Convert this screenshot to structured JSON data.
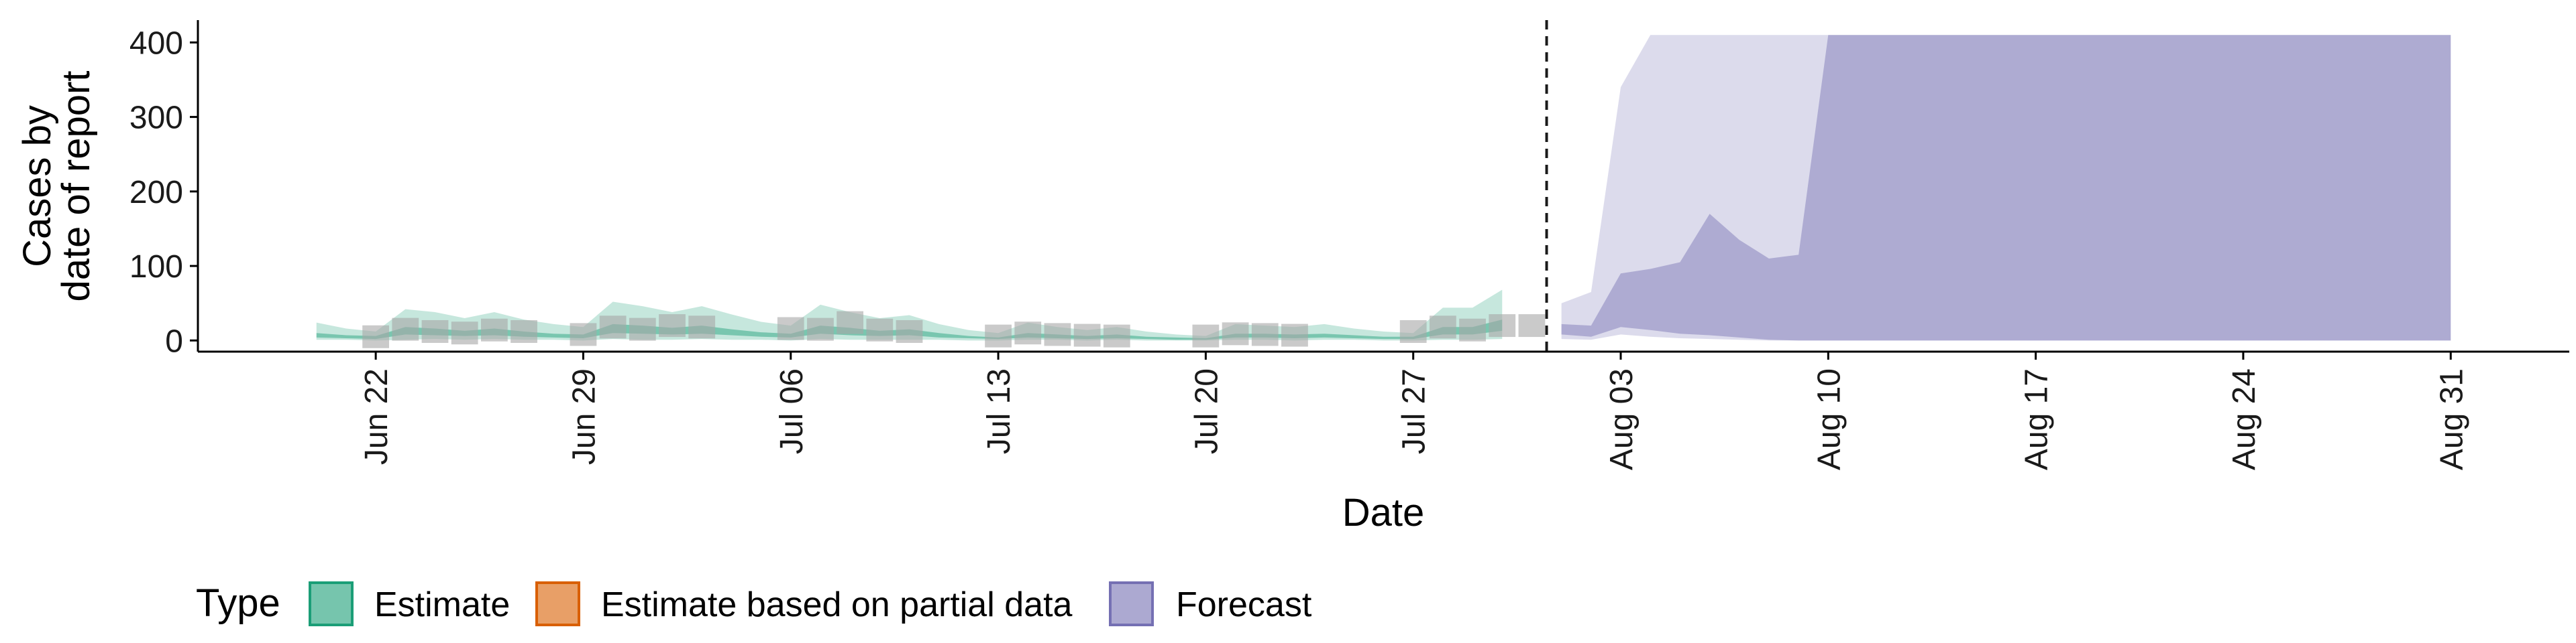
{
  "chart_data": {
    "type": "area",
    "title": "",
    "xlabel": "Date",
    "ylabel_lines": [
      "Cases by",
      "date of report"
    ],
    "x_ticks": [
      "2020-06-22",
      "2020-06-29",
      "2020-07-06",
      "2020-07-13",
      "2020-07-20",
      "2020-07-27",
      "2020-08-03",
      "2020-08-10",
      "2020-08-17",
      "2020-08-24",
      "2020-08-31"
    ],
    "x_tick_labels": [
      "Jun 22",
      "Jun 29",
      "Jul 06",
      "Jul 13",
      "Jul 20",
      "Jul 27",
      "Aug 03",
      "Aug 10",
      "Aug 17",
      "Aug 24",
      "Aug 31"
    ],
    "xlim": [
      "2020-06-16",
      "2020-09-04"
    ],
    "ylim": [
      -15,
      430
    ],
    "y_ticks": [
      0,
      100,
      200,
      300,
      400
    ],
    "forecast_start_date": "2020-07-31",
    "grid": false,
    "legend": {
      "title": "Type",
      "position": "bottom",
      "entries": [
        {
          "label": "Estimate",
          "fill": "#1b9e77",
          "stroke": "#1b9e77"
        },
        {
          "label": "Estimate based on partial data",
          "fill": "#d95f02",
          "stroke": "#d95f02"
        },
        {
          "label": "Forecast",
          "fill": "#7570b3",
          "stroke": "#7570b3"
        }
      ]
    },
    "series": [
      {
        "name": "Estimate",
        "color": "#1b9e77",
        "dates": [
          "2020-06-20",
          "2020-06-21",
          "2020-06-22",
          "2020-06-23",
          "2020-06-24",
          "2020-06-25",
          "2020-06-26",
          "2020-06-27",
          "2020-06-28",
          "2020-06-29",
          "2020-06-30",
          "2020-07-01",
          "2020-07-02",
          "2020-07-03",
          "2020-07-04",
          "2020-07-05",
          "2020-07-06",
          "2020-07-07",
          "2020-07-08",
          "2020-07-09",
          "2020-07-10",
          "2020-07-11",
          "2020-07-12",
          "2020-07-13",
          "2020-07-14",
          "2020-07-15",
          "2020-07-16",
          "2020-07-17",
          "2020-07-18",
          "2020-07-19",
          "2020-07-20",
          "2020-07-21",
          "2020-07-22",
          "2020-07-23",
          "2020-07-24",
          "2020-07-25",
          "2020-07-26",
          "2020-07-27",
          "2020-07-28",
          "2020-07-29",
          "2020-07-30"
        ],
        "outer_upper": [
          24,
          16,
          12,
          42,
          38,
          30,
          38,
          28,
          22,
          18,
          52,
          46,
          38,
          46,
          35,
          25,
          20,
          48,
          38,
          30,
          34,
          22,
          14,
          10,
          24,
          18,
          14,
          18,
          12,
          8,
          6,
          22,
          20,
          18,
          22,
          16,
          12,
          10,
          44,
          44,
          68
        ],
        "outer_lower": [
          1,
          1,
          0,
          1,
          2,
          1,
          2,
          1,
          1,
          0,
          2,
          1,
          1,
          2,
          1,
          1,
          0,
          2,
          1,
          1,
          1,
          1,
          0,
          0,
          1,
          1,
          0,
          1,
          0,
          0,
          0,
          1,
          1,
          0,
          1,
          1,
          0,
          0,
          1,
          1,
          2
        ],
        "inner_upper": [
          10,
          7,
          6,
          18,
          16,
          13,
          16,
          12,
          9,
          8,
          22,
          20,
          17,
          20,
          15,
          11,
          9,
          20,
          17,
          13,
          15,
          10,
          6,
          4,
          10,
          8,
          6,
          8,
          5,
          4,
          3,
          9,
          9,
          8,
          9,
          7,
          5,
          5,
          18,
          18,
          28
        ],
        "inner_lower": [
          4,
          3,
          2,
          8,
          7,
          6,
          7,
          5,
          4,
          3,
          10,
          9,
          8,
          9,
          7,
          5,
          4,
          9,
          7,
          6,
          7,
          4,
          3,
          2,
          4,
          3,
          2,
          3,
          2,
          1,
          1,
          4,
          4,
          3,
          4,
          3,
          2,
          2,
          8,
          8,
          13
        ]
      },
      {
        "name": "Forecast",
        "color": "#7570b3",
        "dates": [
          "2020-08-01",
          "2020-08-02",
          "2020-08-03",
          "2020-08-04",
          "2020-08-05",
          "2020-08-06",
          "2020-08-07",
          "2020-08-08",
          "2020-08-09",
          "2020-08-10",
          "2020-08-11",
          "2020-08-12",
          "2020-08-31"
        ],
        "outer_upper": [
          50,
          65,
          340,
          410,
          410,
          410,
          410,
          410,
          410,
          410,
          410,
          410,
          410
        ],
        "outer_lower": [
          2,
          1,
          8,
          5,
          3,
          2,
          1,
          0,
          0,
          0,
          0,
          0,
          0
        ],
        "inner_upper": [
          22,
          20,
          90,
          96,
          105,
          170,
          135,
          110,
          115,
          410,
          410,
          410,
          410
        ],
        "inner_lower": [
          8,
          5,
          18,
          14,
          9,
          7,
          4,
          1,
          0,
          0,
          0,
          0,
          0
        ]
      }
    ],
    "reported_cases": {
      "color": "#a6a6a6",
      "dates": [
        "2020-06-22",
        "2020-06-23",
        "2020-06-24",
        "2020-06-25",
        "2020-06-26",
        "2020-06-27",
        "2020-06-29",
        "2020-06-30",
        "2020-07-01",
        "2020-07-02",
        "2020-07-03",
        "2020-07-06",
        "2020-07-07",
        "2020-07-08",
        "2020-07-09",
        "2020-07-10",
        "2020-07-13",
        "2020-07-14",
        "2020-07-15",
        "2020-07-16",
        "2020-07-17",
        "2020-07-20",
        "2020-07-21",
        "2020-07-22",
        "2020-07-23",
        "2020-07-27",
        "2020-07-28",
        "2020-07-29",
        "2020-07-30",
        "2020-07-31"
      ],
      "values": [
        5,
        15,
        12,
        10,
        14,
        12,
        8,
        18,
        15,
        20,
        18,
        16,
        15,
        24,
        14,
        12,
        6,
        10,
        8,
        7,
        6,
        6,
        9,
        8,
        7,
        12,
        18,
        14,
        20,
        20
      ]
    }
  }
}
